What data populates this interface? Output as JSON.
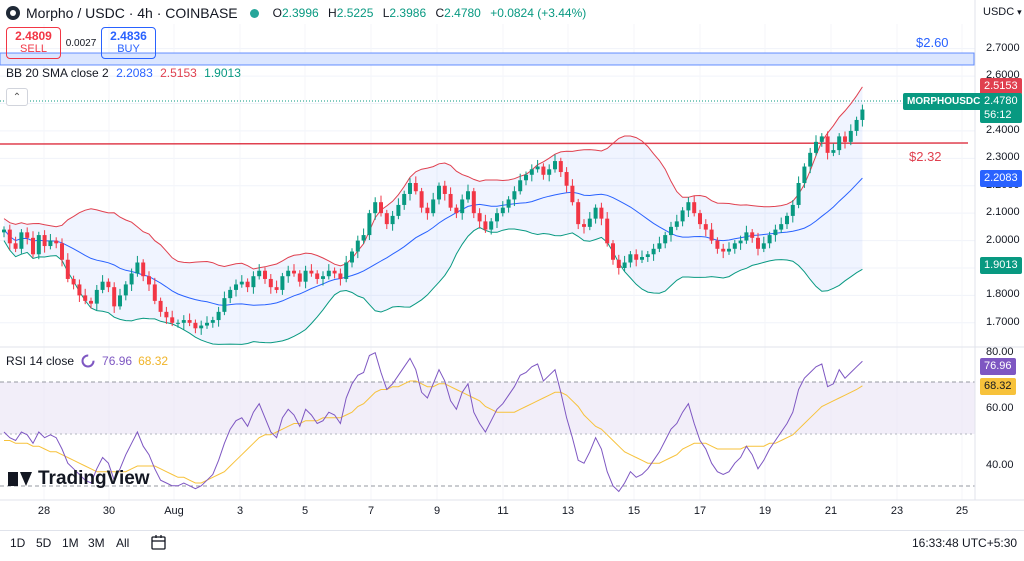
{
  "header": {
    "symbol": "Morpho / USDC · 4h · COINBASE",
    "o_key": "O",
    "o": "2.3996",
    "h_key": "H",
    "h": "2.5225",
    "l_key": "L",
    "l": "2.3986",
    "c_key": "C",
    "c": "2.4780",
    "change": "+0.0824 (+3.44%)"
  },
  "trade": {
    "sell_price": "2.4809",
    "sell_label": "SELL",
    "spread": "0.0027",
    "buy_price": "2.4836",
    "buy_label": "BUY"
  },
  "bb": {
    "label": "BB 20 SMA close 2",
    "basis": "2.2083",
    "upper": "2.5153",
    "lower": "1.9013"
  },
  "rsi": {
    "label": "RSI 14 close",
    "value": "76.96",
    "ma": "68.32"
  },
  "currency": "USDC",
  "levels": {
    "upper": "$2.60",
    "lower": "$2.32"
  },
  "price_tags": {
    "upper": "2.5153",
    "ticker": "MORPHOUSDC",
    "last": "2.4780",
    "countdown": "56:12",
    "basis": "2.2083",
    "lower": "1.9013",
    "rsi": "76.96",
    "rsi_ma": "68.32"
  },
  "watermark": "TradingView",
  "timeframes": [
    "1D",
    "5D",
    "1M",
    "3M",
    "All"
  ],
  "clock": "16:33:48 UTC+5:30",
  "colors": {
    "up": "#089981",
    "down": "#f23645",
    "bb_upper": "#e0404f",
    "bb_basis": "#2962ff",
    "bb_lower": "#089981",
    "rsi": "#7e57c2",
    "rsi_ma": "#f7c23b"
  },
  "chart_data": [
    {
      "type": "candlestick",
      "title": "Morpho / USDC · 4h · COINBASE",
      "ylim": [
        1.63,
        2.79
      ],
      "y_ticks": [
        "2.7000",
        "2.6000",
        "2.5000",
        "2.4000",
        "2.3000",
        "2.2000",
        "2.1000",
        "2.0000",
        "1.9000",
        "1.8000",
        "1.7000"
      ],
      "x_ticks": [
        "28",
        "30",
        "Aug",
        "3",
        "5",
        "7",
        "9",
        "11",
        "13",
        "15",
        "17",
        "19",
        "21",
        "23",
        "25"
      ],
      "closes": [
        2.04,
        1.99,
        1.97,
        2.03,
        2.01,
        1.95,
        2.02,
        1.98,
        2.0,
        1.99,
        1.93,
        1.86,
        1.84,
        1.8,
        1.78,
        1.77,
        1.82,
        1.85,
        1.83,
        1.76,
        1.8,
        1.84,
        1.88,
        1.92,
        1.87,
        1.84,
        1.78,
        1.74,
        1.72,
        1.7,
        1.7,
        1.71,
        1.7,
        1.68,
        1.69,
        1.7,
        1.71,
        1.74,
        1.79,
        1.82,
        1.84,
        1.85,
        1.83,
        1.87,
        1.89,
        1.86,
        1.83,
        1.82,
        1.87,
        1.89,
        1.88,
        1.85,
        1.89,
        1.88,
        1.86,
        1.87,
        1.89,
        1.88,
        1.86,
        1.92,
        1.96,
        2.0,
        2.02,
        2.1,
        2.14,
        2.1,
        2.06,
        2.09,
        2.13,
        2.17,
        2.21,
        2.18,
        2.12,
        2.1,
        2.15,
        2.2,
        2.17,
        2.12,
        2.1,
        2.15,
        2.18,
        2.1,
        2.07,
        2.04,
        2.07,
        2.1,
        2.12,
        2.15,
        2.18,
        2.22,
        2.24,
        2.26,
        2.27,
        2.24,
        2.26,
        2.29,
        2.25,
        2.2,
        2.14,
        2.06,
        2.05,
        2.08,
        2.12,
        2.08,
        1.99,
        1.93,
        1.9,
        1.92,
        1.95,
        1.93,
        1.94,
        1.95,
        1.97,
        1.99,
        2.02,
        2.05,
        2.07,
        2.11,
        2.14,
        2.1,
        2.06,
        2.04,
        2.0,
        1.97,
        1.96,
        1.97,
        1.99,
        2.0,
        2.03,
        2.01,
        1.97,
        1.99,
        2.02,
        2.04,
        2.06,
        2.09,
        2.13,
        2.21,
        2.27,
        2.32,
        2.36,
        2.38,
        2.32,
        2.33,
        2.38,
        2.36,
        2.4,
        2.44,
        2.478
      ]
    },
    {
      "type": "line",
      "title": "RSI 14 close",
      "ylim": [
        28,
        82
      ],
      "y_ticks": [
        "80.00",
        "60.00",
        "40.00"
      ],
      "rsi": [
        52,
        50,
        49,
        52,
        51,
        48,
        52,
        50,
        51,
        50,
        46,
        41,
        39,
        37,
        35,
        34,
        39,
        43,
        41,
        35,
        39,
        44,
        48,
        52,
        47,
        44,
        39,
        35,
        34,
        33,
        33,
        34,
        33,
        32,
        33,
        35,
        37,
        42,
        48,
        53,
        56,
        57,
        54,
        59,
        62,
        57,
        52,
        50,
        57,
        60,
        58,
        54,
        60,
        58,
        55,
        56,
        59,
        58,
        55,
        64,
        69,
        72,
        73,
        79,
        80,
        73,
        67,
        69,
        72,
        75,
        78,
        74,
        66,
        64,
        69,
        74,
        70,
        63,
        60,
        66,
        69,
        59,
        55,
        52,
        56,
        60,
        62,
        65,
        68,
        72,
        73,
        75,
        76,
        70,
        72,
        74,
        66,
        57,
        50,
        42,
        41,
        45,
        50,
        46,
        38,
        33,
        31,
        34,
        38,
        36,
        37,
        39,
        42,
        45,
        49,
        53,
        55,
        59,
        62,
        55,
        49,
        46,
        41,
        38,
        37,
        38,
        41,
        43,
        47,
        44,
        39,
        42,
        46,
        49,
        52,
        55,
        59,
        67,
        71,
        73,
        75,
        76,
        68,
        69,
        74,
        71,
        73,
        75,
        76.96
      ],
      "rsi_ma": [
        49,
        49,
        48,
        48,
        48,
        47,
        47,
        46,
        45,
        45,
        44,
        43,
        42,
        41,
        40,
        39,
        38,
        38,
        38,
        38,
        38,
        38,
        39,
        40,
        40,
        40,
        40,
        39,
        38,
        37,
        36,
        36,
        35,
        34,
        34,
        35,
        36,
        37,
        38,
        40,
        42,
        44,
        46,
        48,
        50,
        51,
        51,
        52,
        53,
        54,
        55,
        55,
        56,
        56,
        56,
        57,
        57,
        57,
        57,
        58,
        59,
        61,
        62,
        64,
        66,
        67,
        67,
        68,
        68,
        69,
        70,
        70,
        69,
        68,
        68,
        69,
        69,
        68,
        67,
        66,
        65,
        64,
        63,
        61,
        60,
        59,
        59,
        59,
        59,
        60,
        61,
        62,
        63,
        64,
        65,
        66,
        66,
        65,
        63,
        61,
        58,
        56,
        54,
        53,
        51,
        49,
        47,
        45,
        44,
        43,
        42,
        41,
        41,
        41,
        42,
        43,
        44,
        46,
        47,
        48,
        48,
        48,
        47,
        46,
        46,
        46,
        46,
        46,
        47,
        47,
        47,
        47,
        48,
        48,
        49,
        50,
        51,
        53,
        55,
        57,
        59,
        61,
        62,
        63,
        64,
        65,
        66,
        67,
        68.32
      ]
    }
  ]
}
